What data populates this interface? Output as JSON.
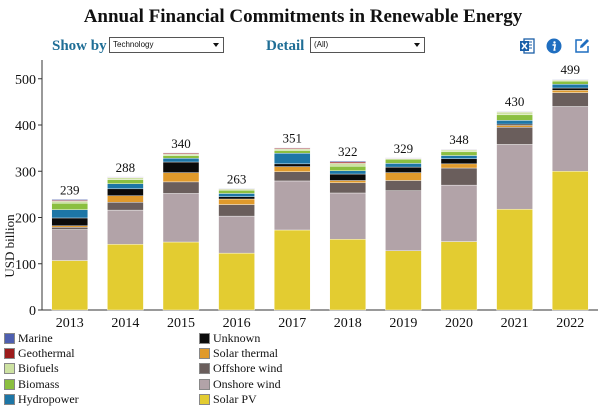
{
  "header": {
    "title": "Annual Financial Commitments in Renewable Energy"
  },
  "controls": {
    "show_by_label": "Show by",
    "show_by_value": "Technology",
    "detail_label": "Detail",
    "detail_value": "(All)"
  },
  "toolbar": {
    "icons": [
      "excel-export-icon",
      "info-icon",
      "edit-icon"
    ],
    "colors": {
      "excel": "#1b5fa8",
      "info": "#1f6ec0",
      "edit": "#1f6ec0"
    }
  },
  "accent_color": "#1f6e96",
  "chart_data": {
    "type": "bar",
    "stacked": true,
    "title": "Annual Financial Commitments in Renewable Energy",
    "ylabel": "USD billion",
    "xlabel": "",
    "ylim": [
      0,
      520
    ],
    "yticks": [
      0,
      100,
      200,
      300,
      400,
      500
    ],
    "grid": false,
    "legend_position": "bottom-left",
    "categories": [
      "2013",
      "2014",
      "2015",
      "2016",
      "2017",
      "2018",
      "2019",
      "2020",
      "2021",
      "2022"
    ],
    "totals": [
      239,
      288,
      340,
      263,
      351,
      322,
      329,
      348,
      430,
      499
    ],
    "series": [
      {
        "name": "Solar PV",
        "color": "#e3cc31",
        "values": [
          107,
          142,
          147,
          123,
          173,
          153,
          128,
          148,
          218,
          300
        ]
      },
      {
        "name": "Onshore wind",
        "color": "#b2a3a8",
        "values": [
          67,
          74,
          105,
          80,
          106,
          100,
          130,
          122,
          140,
          140
        ]
      },
      {
        "name": "Offshore wind",
        "color": "#6a5e5c",
        "values": [
          5,
          17,
          25,
          25,
          20,
          22,
          22,
          37,
          37,
          30
        ]
      },
      {
        "name": "Solar thermal",
        "color": "#e09a2b",
        "values": [
          3,
          14,
          20,
          12,
          11,
          5,
          17,
          9,
          4,
          5
        ]
      },
      {
        "name": "Unknown",
        "color": "#0b0b0b",
        "values": [
          17,
          15,
          23,
          5,
          6,
          14,
          12,
          11,
          3,
          5
        ]
      },
      {
        "name": "Hydropower",
        "color": "#1d76a6",
        "values": [
          18,
          11,
          8,
          7,
          23,
          7,
          8,
          7,
          8,
          8
        ]
      },
      {
        "name": "Biomass",
        "color": "#8bbf40",
        "values": [
          14,
          9,
          6,
          7,
          6,
          10,
          9,
          8,
          12,
          7
        ]
      },
      {
        "name": "Biofuels",
        "color": "#cde2a2",
        "values": [
          4,
          4,
          3,
          2,
          3,
          6,
          1,
          4,
          6,
          2
        ]
      },
      {
        "name": "Geothermal",
        "color": "#9c1b1b",
        "values": [
          2,
          1,
          2,
          1,
          2,
          3,
          1,
          1,
          1,
          1
        ]
      },
      {
        "name": "Marine",
        "color": "#4e5fb0",
        "values": [
          2,
          1,
          1,
          1,
          1,
          2,
          1,
          1,
          1,
          1
        ]
      }
    ],
    "legend": {
      "left": [
        "Marine",
        "Geothermal",
        "Biofuels",
        "Biomass",
        "Hydropower"
      ],
      "right": [
        "Unknown",
        "Solar thermal",
        "Offshore wind",
        "Onshore wind",
        "Solar PV"
      ]
    }
  }
}
